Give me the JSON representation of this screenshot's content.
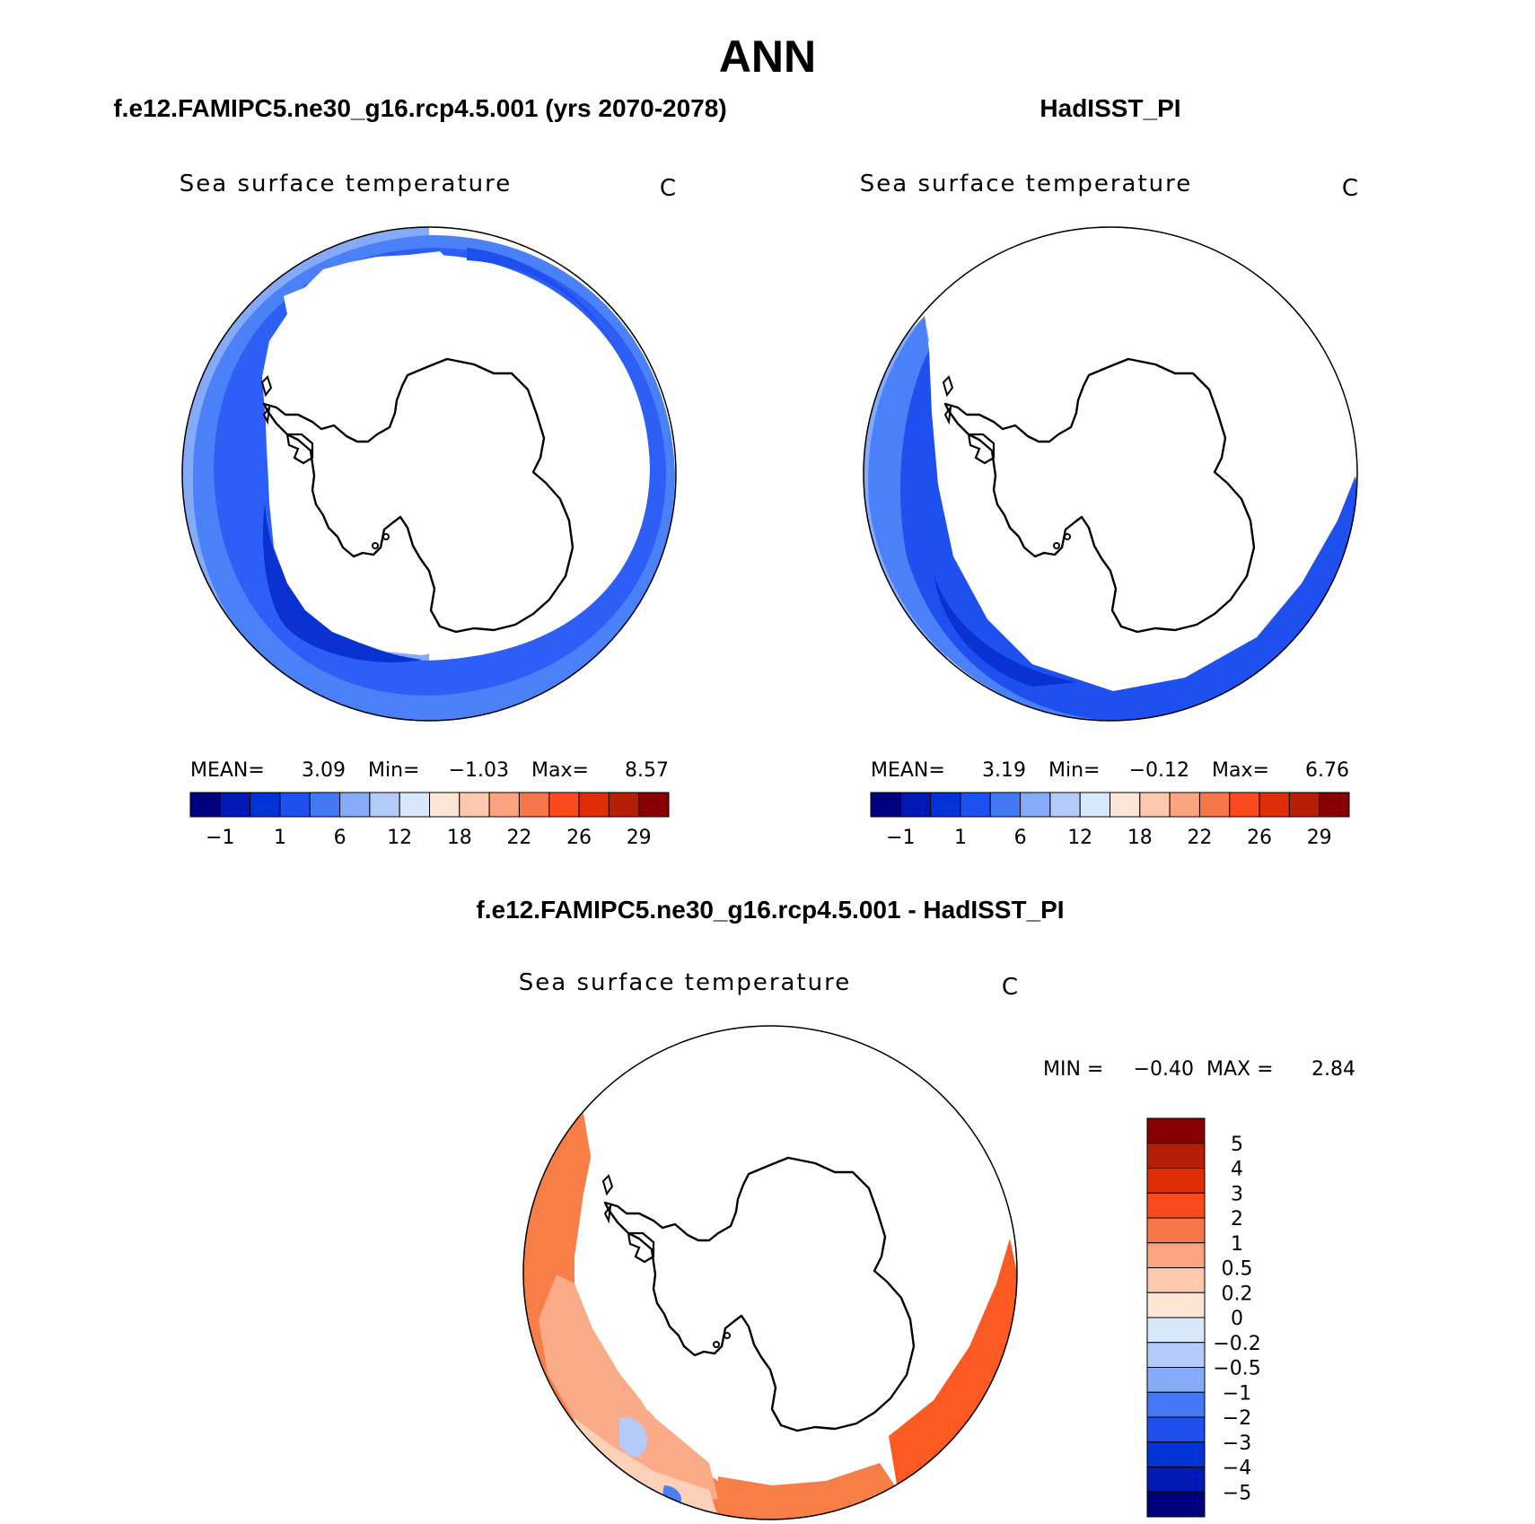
{
  "title": "ANN",
  "colors": {
    "ocean_deep": "#1e50f0",
    "ocean_mid": "#2d5ef5",
    "ocean_dark": "#0a32d2",
    "ocean_light": "#4a80f8",
    "ocean_pale": "#85aaf8",
    "diff_orange": "#f87e48",
    "diff_peach": "#fbab88",
    "diff_light": "#fdd0b8",
    "diff_red": "#fc5a22"
  },
  "panels": [
    {
      "case_title": "f.e12.FAMIPC5.ne30_g16.rcp4.5.001 (yrs 2070-2078)",
      "var_label": "Sea surface temperature",
      "units": "C",
      "mean_label": "MEAN=",
      "mean_value": "3.09",
      "min_label": "Min=",
      "min_value": "−1.03",
      "max_label": "Max=",
      "max_value": "8.57"
    },
    {
      "case_title": "HadISST_PI",
      "var_label": "Sea surface temperature",
      "units": "C",
      "mean_label": "MEAN=",
      "mean_value": "3.19",
      "min_label": "Min=",
      "min_value": "−0.12",
      "max_label": "Max=",
      "max_value": "6.76"
    }
  ],
  "diff_panel": {
    "case_title": "f.e12.FAMIPC5.ne30_g16.rcp4.5.001 - HadISST_PI",
    "var_label": "Sea surface temperature",
    "units": "C",
    "min_label": "MIN =",
    "min_value": "−0.40",
    "max_label": "MAX =",
    "max_value": "2.84"
  },
  "colorbar": {
    "colors": [
      "#00007f",
      "#0018b4",
      "#0033d6",
      "#1e50f0",
      "#4479f6",
      "#85aaf8",
      "#b4cbfa",
      "#d8e8fb",
      "#fde5d6",
      "#fdc8ae",
      "#fba47f",
      "#f8774a",
      "#fc4a1c",
      "#de2e05",
      "#b41e05",
      "#880000"
    ],
    "tick_labels": [
      "−1",
      "1",
      "6",
      "12",
      "18",
      "22",
      "26",
      "29"
    ]
  },
  "diff_colorbar": {
    "colors_top_to_bottom": [
      "#880000",
      "#b41e05",
      "#de2e05",
      "#fc4a1c",
      "#f8774a",
      "#fba47f",
      "#fdc8ae",
      "#fde5d6",
      "#d8e8fb",
      "#b4cbfa",
      "#85aaf8",
      "#4479f6",
      "#1e50f0",
      "#0033d6",
      "#0018b4",
      "#00007f"
    ],
    "tick_labels": [
      "5",
      "4",
      "3",
      "2",
      "1",
      "0.5",
      "0.2",
      "0",
      "−0.2",
      "−0.5",
      "−1",
      "−2",
      "−3",
      "−4",
      "−5"
    ]
  }
}
